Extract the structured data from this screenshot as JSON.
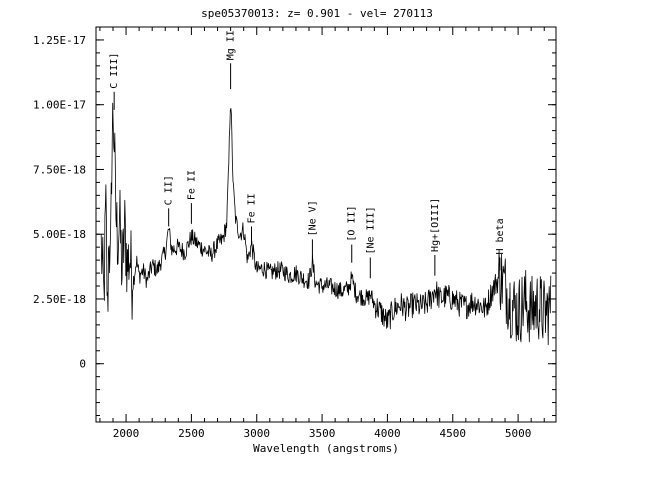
{
  "chart_data": {
    "type": "line",
    "title": "spe05370013: z= 0.901 - vel= 270113",
    "xlabel": "Wavelength (angstroms)",
    "ylabel": "",
    "xlim": [
      1770,
      5290
    ],
    "ylim": [
      -2.25e-18,
      1.3e-17
    ],
    "x_ticks": [
      {
        "value": 2000,
        "label": "2000"
      },
      {
        "value": 2500,
        "label": "2500"
      },
      {
        "value": 3000,
        "label": "3000"
      },
      {
        "value": 3500,
        "label": "3500"
      },
      {
        "value": 4000,
        "label": "4000"
      },
      {
        "value": 4500,
        "label": "4500"
      },
      {
        "value": 5000,
        "label": "5000"
      }
    ],
    "y_ticks": [
      {
        "value": 0,
        "label": "0"
      },
      {
        "value": 2.5e-18,
        "label": "2.50E-18"
      },
      {
        "value": 5e-18,
        "label": "5.00E-18"
      },
      {
        "value": 7.5e-18,
        "label": "7.50E-18"
      },
      {
        "value": 1e-17,
        "label": "1.00E-17"
      },
      {
        "value": 1.25e-17,
        "label": "1.25E-17"
      }
    ],
    "grid": false,
    "series": [
      {
        "points": [
          [
            1810,
            4.5e-18
          ],
          [
            1830,
            2.5e-18
          ],
          [
            1845,
            6.2e-18
          ],
          [
            1858,
            1.8e-18
          ],
          [
            1870,
            5.4e-18
          ],
          [
            1880,
            3e-18
          ],
          [
            1890,
            7.8e-18
          ],
          [
            1900,
            9.7e-18
          ],
          [
            1910,
            8.6e-18
          ],
          [
            1920,
            6e-18
          ],
          [
            1935,
            4.8e-18
          ],
          [
            1950,
            5.6e-18
          ],
          [
            1970,
            3.5e-18
          ],
          [
            1990,
            5.2e-18
          ],
          [
            2010,
            3.8e-18
          ],
          [
            2030,
            4.2e-18
          ],
          [
            2050,
            3e-18
          ],
          [
            2080,
            4e-18
          ],
          [
            2100,
            3.4e-18
          ],
          [
            2130,
            3.6e-18
          ],
          [
            2160,
            3.2e-18
          ],
          [
            2200,
            3.8e-18
          ],
          [
            2240,
            3.6e-18
          ],
          [
            2270,
            4e-18
          ],
          [
            2300,
            4.3e-18
          ],
          [
            2326,
            5.2e-18
          ],
          [
            2350,
            4.4e-18
          ],
          [
            2400,
            4.5e-18
          ],
          [
            2450,
            4.3e-18
          ],
          [
            2500,
            4.9e-18
          ],
          [
            2550,
            4.6e-18
          ],
          [
            2600,
            4.4e-18
          ],
          [
            2650,
            4.2e-18
          ],
          [
            2700,
            4.6e-18
          ],
          [
            2740,
            4.8e-18
          ],
          [
            2770,
            5.4e-18
          ],
          [
            2785,
            7.5e-18
          ],
          [
            2795,
            9.5e-18
          ],
          [
            2800,
            1.04e-17
          ],
          [
            2808,
            9e-18
          ],
          [
            2820,
            6.8e-18
          ],
          [
            2840,
            5.5e-18
          ],
          [
            2870,
            5e-18
          ],
          [
            2900,
            5.2e-18
          ],
          [
            2930,
            4e-18
          ],
          [
            2960,
            4.6e-18
          ],
          [
            3000,
            3.6e-18
          ],
          [
            3050,
            3.7e-18
          ],
          [
            3100,
            3.5e-18
          ],
          [
            3150,
            3.6e-18
          ],
          [
            3200,
            3.6e-18
          ],
          [
            3250,
            3.4e-18
          ],
          [
            3300,
            3.5e-18
          ],
          [
            3350,
            3.3e-18
          ],
          [
            3400,
            3.2e-18
          ],
          [
            3426,
            3.9e-18
          ],
          [
            3450,
            3.1e-18
          ],
          [
            3500,
            3e-18
          ],
          [
            3550,
            3e-18
          ],
          [
            3600,
            2.9e-18
          ],
          [
            3650,
            2.8e-18
          ],
          [
            3700,
            2.9e-18
          ],
          [
            3727,
            3.3e-18
          ],
          [
            3760,
            2.7e-18
          ],
          [
            3800,
            2.6e-18
          ],
          [
            3850,
            2.5e-18
          ],
          [
            3869,
            2.7e-18
          ],
          [
            3900,
            2.3e-18
          ],
          [
            3950,
            2e-18
          ],
          [
            4000,
            1.6e-18
          ],
          [
            4050,
            2.1e-18
          ],
          [
            4100,
            2.3e-18
          ],
          [
            4150,
            2.1e-18
          ],
          [
            4200,
            2.3e-18
          ],
          [
            4250,
            2.2e-18
          ],
          [
            4300,
            2.3e-18
          ],
          [
            4340,
            2.6e-18
          ],
          [
            4363,
            2.9e-18
          ],
          [
            4400,
            2.5e-18
          ],
          [
            4450,
            2.6e-18
          ],
          [
            4500,
            2.5e-18
          ],
          [
            4550,
            2.3e-18
          ],
          [
            4600,
            2.2e-18
          ],
          [
            4650,
            2.4e-18
          ],
          [
            4700,
            2.3e-18
          ],
          [
            4750,
            2.1e-18
          ],
          [
            4800,
            2.8e-18
          ],
          [
            4861,
            3.4e-18
          ],
          [
            4900,
            3e-18
          ],
          [
            4950,
            2.3e-18
          ],
          [
            5000,
            2e-18
          ],
          [
            5050,
            2.4e-18
          ],
          [
            5100,
            2e-18
          ],
          [
            5150,
            2.3e-18
          ],
          [
            5200,
            1.9e-18
          ],
          [
            5250,
            2.2e-18
          ]
        ]
      }
    ],
    "annotations": [
      {
        "label": "C III]",
        "x": 1909,
        "y_from": 9.8e-18,
        "y_to": 1.05e-17
      },
      {
        "label": "Mg II",
        "x": 2800,
        "y_from": 1.06e-17,
        "y_to": 1.16e-17
      },
      {
        "label": "C II]",
        "x": 2326,
        "y_from": 5.3e-18,
        "y_to": 6e-18
      },
      {
        "label": "Fe II",
        "x": 2500,
        "y_from": 5.4e-18,
        "y_to": 6.2e-18
      },
      {
        "label": "Fe II",
        "x": 2960,
        "y_from": 4.6e-18,
        "y_to": 5.3e-18
      },
      {
        "label": "[Ne V]",
        "x": 3426,
        "y_from": 4.1e-18,
        "y_to": 4.8e-18
      },
      {
        "label": "[O II]",
        "x": 3727,
        "y_from": 3.9e-18,
        "y_to": 4.6e-18
      },
      {
        "label": "[Ne III]",
        "x": 3869,
        "y_from": 3.3e-18,
        "y_to": 4.1e-18
      },
      {
        "label": "Hg+[OIII]",
        "x": 4363,
        "y_from": 3.4e-18,
        "y_to": 4.2e-18
      },
      {
        "label": "H beta",
        "x": 4861,
        "y_from": 3.6e-18,
        "y_to": 4.1e-18
      }
    ]
  }
}
